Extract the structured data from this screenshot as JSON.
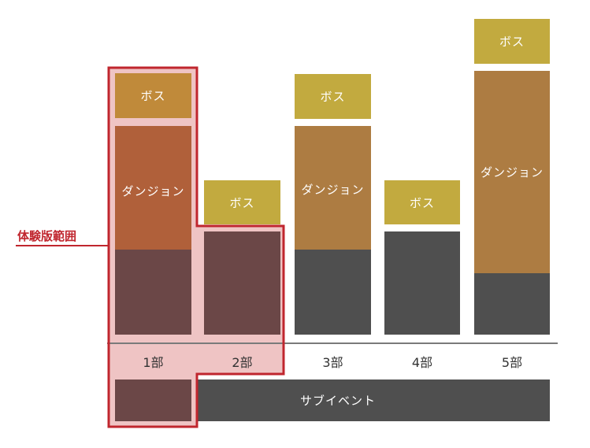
{
  "demo": {
    "label": "体験版範囲"
  },
  "labels": {
    "boss": "ボス",
    "dungeon": "ダンジョン",
    "sub_event": "サブイベント"
  },
  "parts": [
    "1部",
    "2部",
    "3部",
    "4部",
    "5部"
  ],
  "colors": {
    "boss_gold": "#c2aa3f",
    "boss_demo": "#c08a3a",
    "dungeon_brown": "#ad7c42",
    "dungeon_demo": "#b0603a",
    "base_gray": "#4f4f4f",
    "base_demo": "#6b4747",
    "demo_highlight": "#efc4c4",
    "demo_outline": "#c0262e",
    "axis": "#7a7a7a"
  }
}
